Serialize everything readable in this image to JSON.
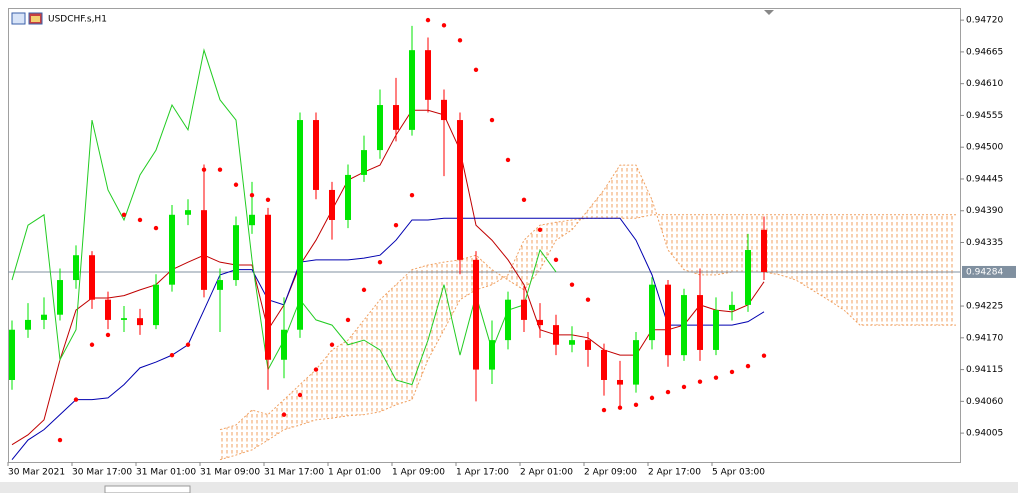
{
  "chart_data": {
    "type": "candlestick",
    "title": "USDCHF.s,H1",
    "categories": [
      "30 Mar 2021",
      null,
      null,
      null,
      "30 Mar 17:00",
      null,
      null,
      null,
      "31 Mar 01:00",
      null,
      null,
      null,
      "31 Mar 09:00",
      null,
      null,
      null,
      "31 Mar 17:00",
      null,
      null,
      null,
      "1 Apr 01:00",
      null,
      null,
      null,
      "1 Apr 09:00",
      null,
      null,
      null,
      "1 Apr 17:00",
      null,
      null,
      null,
      "2 Apr 01:00",
      null,
      null,
      null,
      "2 Apr 09:00",
      null,
      null,
      null,
      "2 Apr 17:00",
      null,
      null,
      null,
      "5 Apr 03:00",
      null,
      null,
      null,
      null,
      null,
      null,
      null,
      null,
      null,
      null,
      null,
      null,
      null,
      null,
      null
    ],
    "open": [
      0.94097,
      0.94184,
      0.94201,
      0.9421,
      0.9427,
      0.94313,
      0.94236,
      0.94201,
      0.94204,
      0.94192,
      0.94262,
      0.94383,
      0.94391,
      0.94253,
      0.9427,
      0.94365,
      0.94383,
      0.94132,
      0.94184,
      0.94547,
      0.94426,
      0.94374,
      0.94452,
      0.94495,
      0.94573,
      0.9453,
      0.94668,
      0.94582,
      0.94547,
      0.94305,
      0.94115,
      0.94166,
      0.94236,
      0.94201,
      0.94192,
      0.94158,
      0.94166,
      0.94149,
      0.94097,
      0.94089,
      0.94166,
      0.94262,
      0.9414,
      0.94244,
      0.94149,
      0.94218,
      0.94227,
      0.94357,
      null,
      null,
      null,
      null,
      null,
      null,
      null,
      null,
      null,
      null,
      null,
      null
    ],
    "high": [
      0.942,
      0.9423,
      0.9424,
      0.9429,
      0.9433,
      0.9432,
      0.9425,
      0.94225,
      0.9422,
      0.9428,
      0.944,
      0.9441,
      0.9447,
      0.9429,
      0.9438,
      0.9444,
      0.94395,
      0.9424,
      0.9456,
      0.9456,
      0.9444,
      0.9447,
      0.9452,
      0.946,
      0.9462,
      0.9471,
      0.9469,
      0.946,
      0.9456,
      0.9432,
      0.942,
      0.9425,
      0.9426,
      0.9423,
      0.9421,
      0.9419,
      0.9418,
      0.9416,
      0.9413,
      0.9418,
      0.94275,
      0.9427,
      0.94255,
      0.9429,
      0.9424,
      0.9425,
      0.9435,
      0.9438,
      null,
      null,
      null,
      null,
      null,
      null,
      null,
      null,
      null,
      null,
      null,
      null
    ],
    "low": [
      0.9408,
      0.9417,
      0.94185,
      0.942,
      0.94255,
      0.9422,
      0.94185,
      0.9418,
      0.94175,
      0.94185,
      0.9425,
      0.94365,
      0.9424,
      0.9418,
      0.9426,
      0.9435,
      0.9408,
      0.941,
      0.9417,
      0.9441,
      0.9434,
      0.9436,
      0.9444,
      0.9448,
      0.9451,
      0.9452,
      0.9456,
      0.9445,
      0.9428,
      0.9406,
      0.9409,
      0.9415,
      0.9418,
      0.9417,
      0.9414,
      0.94145,
      0.9412,
      0.9407,
      0.9405,
      0.94075,
      0.9415,
      0.9412,
      0.9413,
      0.9413,
      0.9414,
      0.942,
      0.94215,
      0.9427,
      null,
      null,
      null,
      null,
      null,
      null,
      null,
      null,
      null,
      null,
      null,
      null
    ],
    "close": [
      0.94184,
      0.94201,
      0.9421,
      0.9427,
      0.94313,
      0.94236,
      0.94201,
      0.94204,
      0.94192,
      0.94262,
      0.94383,
      0.94391,
      0.94253,
      0.9427,
      0.94365,
      0.94383,
      0.94132,
      0.94184,
      0.94547,
      0.94426,
      0.94374,
      0.94452,
      0.94495,
      0.94573,
      0.9453,
      0.94668,
      0.94582,
      0.94547,
      0.94305,
      0.94115,
      0.94166,
      0.94236,
      0.94201,
      0.94192,
      0.94158,
      0.94166,
      0.94149,
      0.94097,
      0.94089,
      0.94166,
      0.94262,
      0.9414,
      0.94244,
      0.94149,
      0.94218,
      0.94227,
      0.94322,
      0.94284,
      null,
      null,
      null,
      null,
      null,
      null,
      null,
      null,
      null,
      null,
      null,
      null
    ],
    "bull_color": "#00e600",
    "bear_color": "#ff0000",
    "lines": [
      {
        "color": "#c00000",
        "values": [
          0.93985,
          0.94002,
          0.94028,
          0.94132,
          0.94218,
          0.94239,
          0.94239,
          0.94243,
          0.94253,
          0.94262,
          0.94288,
          0.94301,
          0.94313,
          0.94301,
          0.94296,
          0.94296,
          0.94184,
          0.94227,
          0.94296,
          0.94339,
          0.94391,
          0.94443,
          0.94457,
          0.94469,
          0.94521,
          0.94564,
          0.94564,
          0.94556,
          0.94495,
          0.94365,
          0.94339,
          0.94305,
          0.94262,
          0.94184,
          0.94175,
          0.94175,
          0.9417,
          0.94149,
          0.9414,
          0.9414,
          0.94184,
          0.94184,
          0.94192,
          0.94227,
          0.94218,
          0.94215,
          0.94227,
          0.94267,
          null,
          null,
          null,
          null,
          null,
          null,
          null,
          null,
          null,
          null,
          null,
          null
        ]
      },
      {
        "color": "#0000b0",
        "values": [
          0.93959,
          0.93993,
          0.94011,
          0.94037,
          0.94063,
          0.94063,
          0.94066,
          0.94089,
          0.94118,
          0.94128,
          0.9414,
          0.94158,
          0.94218,
          0.94279,
          0.94288,
          0.94288,
          0.94236,
          0.94227,
          0.94301,
          0.94305,
          0.94305,
          0.94305,
          0.94308,
          0.94313,
          0.94339,
          0.94374,
          0.94374,
          0.94377,
          0.94377,
          0.94377,
          0.94377,
          0.94377,
          0.94377,
          0.94377,
          0.94377,
          0.94377,
          0.94377,
          0.94377,
          0.94377,
          0.94339,
          0.94279,
          0.94192,
          0.94192,
          0.94192,
          0.94192,
          0.94192,
          0.94198,
          0.94215,
          null,
          null,
          null,
          null,
          null,
          null,
          null,
          null,
          null,
          null,
          null,
          null
        ]
      },
      {
        "color": "#22cc22",
        "values": [
          0.9427,
          0.94365,
          0.94383,
          0.94132,
          0.94184,
          0.94547,
          0.94426,
          0.94374,
          0.94452,
          0.94495,
          0.94573,
          0.9453,
          0.94668,
          0.94582,
          0.94547,
          0.94305,
          0.94115,
          0.94166,
          0.94236,
          0.94201,
          0.94192,
          0.94158,
          0.94166,
          0.94149,
          0.94097,
          0.94089,
          0.94166,
          0.94262,
          0.9414,
          0.94244,
          0.94149,
          0.94218,
          0.94227,
          0.94322,
          0.94284,
          null,
          null,
          null,
          null,
          null,
          null,
          null,
          null,
          null,
          null,
          null,
          null,
          null,
          null,
          null,
          null,
          null,
          null,
          null,
          null,
          null,
          null,
          null,
          null,
          null
        ]
      }
    ],
    "sar": {
      "color": "#ff0000",
      "values": [
        null,
        null,
        null,
        0.93993,
        0.94063,
        0.94158,
        0.94175,
        0.94383,
        0.94374,
        0.9436,
        0.9414,
        0.94158,
        0.94461,
        0.94461,
        0.94435,
        0.94417,
        0.94409,
        0.94037,
        0.94071,
        0.94115,
        0.94158,
        0.94201,
        0.94253,
        0.94301,
        0.94365,
        0.94417,
        0.9472,
        0.94711,
        0.94685,
        0.94634,
        0.94547,
        0.94478,
        0.94409,
        0.94357,
        0.94305,
        0.94262,
        0.94236,
        0.94045,
        0.94049,
        0.94054,
        0.94066,
        0.94076,
        0.94085,
        0.94094,
        0.94101,
        0.94111,
        0.94121,
        0.94139,
        null,
        null,
        null,
        null,
        null,
        null,
        null,
        null,
        null,
        null,
        null,
        null
      ]
    },
    "cloud": {
      "color": "#f0a060",
      "span_a": [
        null,
        null,
        null,
        null,
        null,
        null,
        null,
        null,
        null,
        null,
        null,
        null,
        null,
        0.94011,
        0.94019,
        0.94045,
        0.94037,
        0.94063,
        0.94089,
        0.94115,
        0.94149,
        0.94166,
        0.94201,
        0.94236,
        0.94262,
        0.94288,
        0.94296,
        0.94301,
        0.94305,
        0.94313,
        0.94288,
        0.9427,
        0.94253,
        0.94288,
        0.94339,
        0.94357,
        0.94391,
        0.94426,
        0.94469,
        0.94469,
        0.94409,
        0.94322,
        0.94288,
        0.94279,
        0.94279,
        0.94284,
        0.94284,
        0.94284,
        0.94279,
        0.9427,
        0.94253,
        0.94236,
        0.94218,
        0.94192,
        0.94192,
        0.94192,
        0.94192,
        0.94192,
        0.94192,
        0.94192
      ],
      "span_b": [
        null,
        null,
        null,
        null,
        null,
        null,
        null,
        null,
        null,
        null,
        null,
        null,
        null,
        0.93959,
        0.93967,
        0.93976,
        0.93993,
        0.94011,
        0.94019,
        0.94028,
        0.94031,
        0.94035,
        0.94037,
        0.94042,
        0.94054,
        0.94063,
        0.94132,
        0.94184,
        0.94236,
        0.94253,
        0.94262,
        0.94279,
        0.94339,
        0.94365,
        0.9437,
        0.94374,
        0.94377,
        0.94377,
        0.94377,
        0.94377,
        0.94383,
        0.94383,
        0.94383,
        0.94383,
        0.94383,
        0.94383,
        0.94383,
        0.94383,
        0.94383,
        0.94383,
        0.94383,
        0.94383,
        0.94383,
        0.94383,
        0.94383,
        0.94383,
        0.94383,
        0.94383,
        0.94383,
        0.94383
      ]
    },
    "ylim": [
      0.93955,
      0.94741
    ],
    "yticks": [
      {
        "value": 0.9472,
        "label": "0.94720"
      },
      {
        "value": 0.94665,
        "label": "0.94665"
      },
      {
        "value": 0.9461,
        "label": "0.94610"
      },
      {
        "value": 0.94555,
        "label": "0.94555"
      },
      {
        "value": 0.945,
        "label": "0.94500"
      },
      {
        "value": 0.94445,
        "label": "0.94445"
      },
      {
        "value": 0.9439,
        "label": "0.94390"
      },
      {
        "value": 0.94335,
        "label": "0.94335"
      },
      {
        "value": 0.94225,
        "label": "0.94225"
      },
      {
        "value": 0.9417,
        "label": "0.94170"
      },
      {
        "value": 0.94115,
        "label": "0.94115"
      },
      {
        "value": 0.9406,
        "label": "0.94060"
      },
      {
        "value": 0.94005,
        "label": "0.94005"
      }
    ],
    "current_price": 0.94284
  }
}
